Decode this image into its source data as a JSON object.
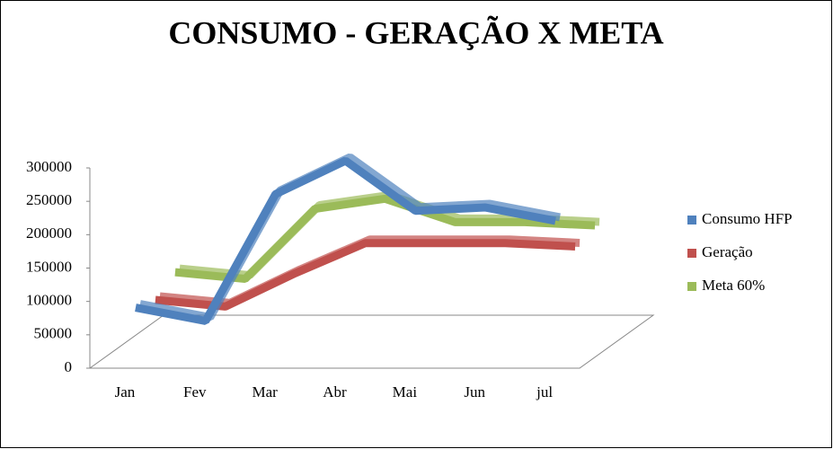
{
  "chart_data": {
    "type": "line3d",
    "title": "CONSUMO - GERAÇÃO X META",
    "categories": [
      "Jan",
      "Fev",
      "Mar",
      "Abr",
      "Mai",
      "Jun",
      "jul"
    ],
    "series": [
      {
        "name": "Consumo HFP",
        "color": "#4f81bd",
        "values": [
          80000,
          60000,
          250000,
          300000,
          225000,
          230000,
          210000
        ]
      },
      {
        "name": "Geração",
        "color": "#c0504d",
        "values": [
          70000,
          60000,
          110000,
          155000,
          155000,
          155000,
          150000
        ]
      },
      {
        "name": "Meta 60%",
        "color": "#9bbb59",
        "values": [
          90000,
          80000,
          185000,
          200000,
          165000,
          165000,
          160000
        ]
      }
    ],
    "ylim": [
      0,
      300000
    ],
    "yticks": [
      0,
      50000,
      100000,
      150000,
      200000,
      250000,
      300000
    ]
  }
}
